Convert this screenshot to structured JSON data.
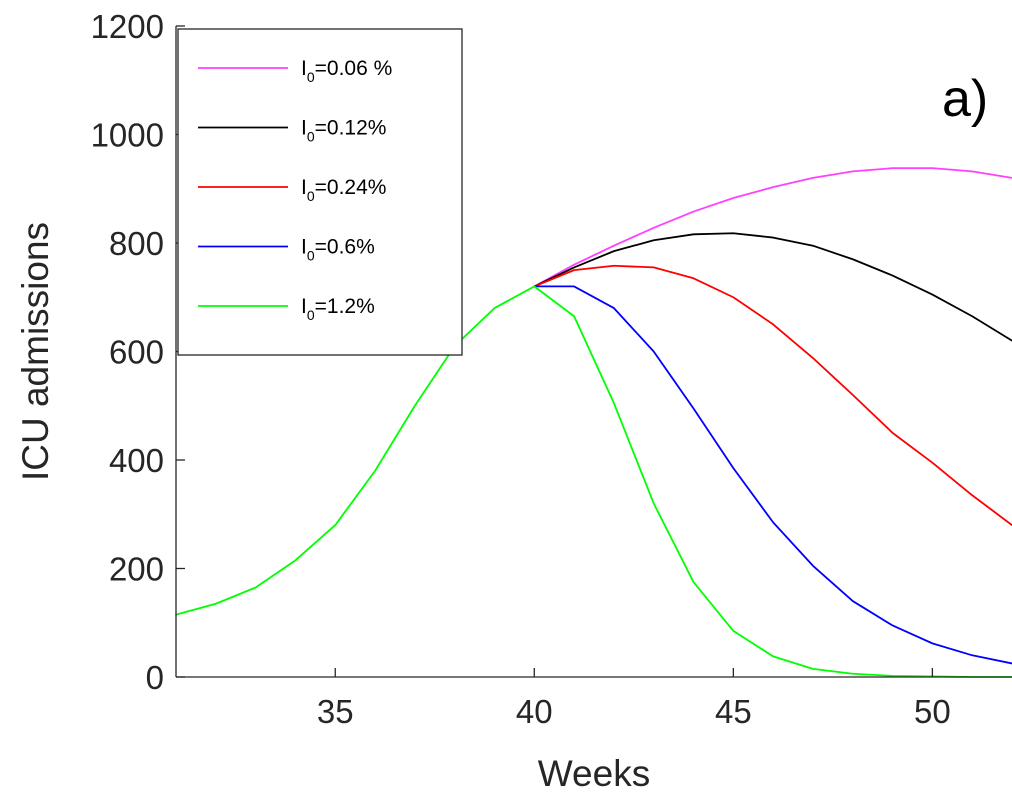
{
  "chart_data": {
    "type": "line",
    "panel_label": "a)",
    "xlabel": "Weeks",
    "ylabel": "ICU admissions",
    "xlim": [
      31,
      52
    ],
    "ylim": [
      0,
      1200
    ],
    "x_ticks": [
      35,
      40,
      45,
      50
    ],
    "y_ticks": [
      0,
      200,
      400,
      600,
      800,
      1000,
      1200
    ],
    "grid": false,
    "legend_position": "top-left",
    "series": [
      {
        "name": "I0=0.06 %",
        "label_main": "I",
        "label_sub": "0",
        "label_rest": "=0.06 %",
        "color": "#ff40ff",
        "x": [
          40,
          41,
          42,
          43,
          44,
          45,
          46,
          47,
          48,
          49,
          50,
          51,
          52
        ],
        "y": [
          720,
          760,
          795,
          828,
          858,
          883,
          903,
          920,
          932,
          938,
          938,
          932,
          920
        ]
      },
      {
        "name": "I0=0.12%",
        "label_main": "I",
        "label_sub": "0",
        "label_rest": "=0.12%",
        "color": "#000000",
        "x": [
          40,
          41,
          42,
          43,
          44,
          45,
          46,
          47,
          48,
          49,
          50,
          51,
          52
        ],
        "y": [
          720,
          755,
          785,
          805,
          816,
          818,
          810,
          795,
          770,
          740,
          705,
          665,
          620
        ]
      },
      {
        "name": "I0=0.24%",
        "label_main": "I",
        "label_sub": "0",
        "label_rest": "=0.24%",
        "color": "#ff0000",
        "x": [
          40,
          41,
          42,
          43,
          44,
          45,
          46,
          47,
          48,
          49,
          50,
          51,
          52
        ],
        "y": [
          720,
          750,
          758,
          755,
          735,
          700,
          650,
          588,
          520,
          450,
          395,
          335,
          280
        ]
      },
      {
        "name": "I0=0.6%",
        "label_main": "I",
        "label_sub": "0",
        "label_rest": "=0.6%",
        "color": "#0000ff",
        "x": [
          40,
          41,
          42,
          43,
          44,
          45,
          46,
          47,
          48,
          49,
          50,
          51,
          52
        ],
        "y": [
          720,
          720,
          680,
          600,
          495,
          385,
          285,
          205,
          140,
          95,
          62,
          40,
          25
        ]
      },
      {
        "name": "I0=1.2%",
        "label_main": "I",
        "label_sub": "0",
        "label_rest": "=1.2%",
        "color": "#00ff00",
        "x": [
          31,
          32,
          33,
          34,
          35,
          36,
          37,
          38,
          39,
          40,
          41,
          42,
          43,
          44,
          45,
          46,
          47,
          48,
          49,
          50,
          51,
          52
        ],
        "y": [
          115,
          135,
          165,
          215,
          280,
          380,
          500,
          610,
          680,
          720,
          665,
          505,
          320,
          175,
          85,
          38,
          15,
          6,
          2,
          1,
          0,
          0
        ]
      }
    ]
  }
}
